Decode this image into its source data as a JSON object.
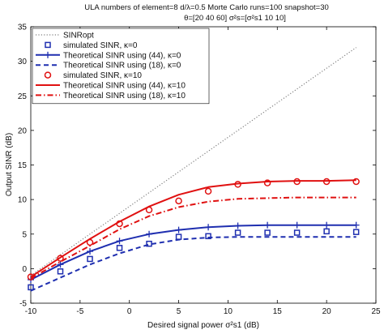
{
  "chart_data": {
    "type": "line",
    "title": [
      "ULA  numbers of element=8  d/λ=0.5  Morte Carlo runs=100  snapshot=30",
      "θ=[20  40  60]    σ²s=[σ²s1 10 10]"
    ],
    "xlabel": "Desired signal power σ²s1 (dB)",
    "ylabel": "Output SINR (dB)",
    "xlim": [
      -10,
      25
    ],
    "ylim": [
      -5,
      35
    ],
    "xticks": [
      -10,
      -5,
      0,
      5,
      10,
      15,
      20,
      25
    ],
    "yticks": [
      -5,
      0,
      5,
      10,
      15,
      20,
      25,
      30,
      35
    ],
    "grid": false,
    "legend_position": "top-left",
    "series": [
      {
        "name": "SINRopt",
        "color": "#808080",
        "style": "dotted",
        "x": [
          -10,
          23
        ],
        "y": [
          -1,
          32
        ]
      },
      {
        "name": "simulated SINR, κ=0",
        "color": "#1f2fb0",
        "style": "markers",
        "marker": "square",
        "x": [
          -10,
          -7,
          -4,
          -1,
          2,
          5,
          8,
          11,
          14,
          17,
          20,
          23
        ],
        "y": [
          -2.7,
          -0.4,
          1.4,
          3.0,
          3.6,
          4.6,
          4.7,
          5.2,
          5.2,
          5.2,
          5.4,
          5.3
        ]
      },
      {
        "name": "Theoretical SINR using (44), κ=0",
        "color": "#1f2fb0",
        "style": "solid",
        "marker": "plus",
        "x": [
          -10,
          -7,
          -4,
          -1,
          2,
          5,
          8,
          11,
          14,
          17,
          20,
          23
        ],
        "y": [
          -1.6,
          0.6,
          2.5,
          4.0,
          5.0,
          5.6,
          6.0,
          6.2,
          6.3,
          6.3,
          6.3,
          6.3
        ]
      },
      {
        "name": "Theoretical SINR using (18), κ=0",
        "color": "#1f2fb0",
        "style": "dashed",
        "x": [
          -10,
          -7,
          -4,
          -1,
          2,
          5,
          8,
          11,
          14,
          17,
          20,
          23
        ],
        "y": [
          -3.2,
          -1.3,
          0.6,
          2.2,
          3.5,
          4.2,
          4.5,
          4.6,
          4.6,
          4.6,
          4.6,
          4.6
        ]
      },
      {
        "name": "simulated SINR, κ=10",
        "color": "#e01010",
        "style": "markers",
        "marker": "circle",
        "x": [
          -10,
          -7,
          -4,
          -1,
          2,
          5,
          8,
          11,
          14,
          17,
          20,
          23
        ],
        "y": [
          -1.2,
          1.5,
          3.8,
          6.5,
          8.5,
          9.8,
          11.2,
          12.2,
          12.4,
          12.6,
          12.6,
          12.6
        ]
      },
      {
        "name": "Theoretical SINR using (44), κ=10",
        "color": "#e01010",
        "style": "solid",
        "x": [
          -10,
          -7,
          -4,
          -1,
          2,
          5,
          8,
          11,
          14,
          17,
          20,
          23
        ],
        "y": [
          -1.2,
          1.6,
          4.3,
          6.8,
          9.0,
          10.7,
          11.8,
          12.3,
          12.6,
          12.7,
          12.7,
          12.8
        ]
      },
      {
        "name": "Theoretical SINR using (18), κ=10",
        "color": "#e01010",
        "style": "dashdot",
        "x": [
          -10,
          -7,
          -4,
          -1,
          2,
          5,
          8,
          11,
          14,
          17,
          20,
          23
        ],
        "y": [
          -1.4,
          1.0,
          3.3,
          5.7,
          7.6,
          8.9,
          9.7,
          10.1,
          10.2,
          10.3,
          10.3,
          10.3
        ]
      }
    ]
  }
}
